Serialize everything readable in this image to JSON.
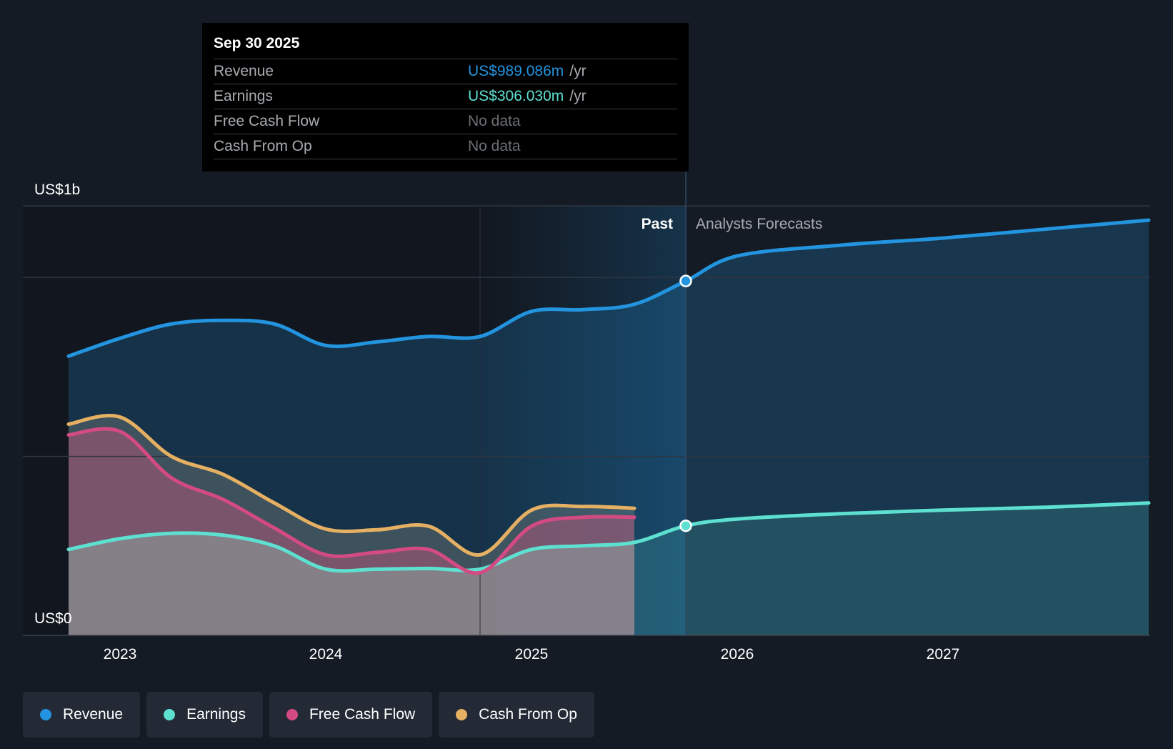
{
  "colors": {
    "background": "#151b24",
    "revenue": "#2394df",
    "earnings": "#5de0d0",
    "free_cash_flow": "#d44a82",
    "cash_from_op": "#e6b063",
    "grid": "#2f3640",
    "past_label": "#ffffff",
    "forecast_label": "#a8acb1"
  },
  "tooltip": {
    "date": "Sep 30 2025",
    "rows": [
      {
        "label": "Revenue",
        "value": "US$989.086m",
        "unit": "/yr",
        "color": "#2394df"
      },
      {
        "label": "Earnings",
        "value": "US$306.030m",
        "unit": "/yr",
        "color": "#5de0d0"
      },
      {
        "label": "Free Cash Flow",
        "value": "No data",
        "unit": "",
        "color": "#6b6f75"
      },
      {
        "label": "Cash From Op",
        "value": "No data",
        "unit": "",
        "color": "#6b6f75"
      }
    ]
  },
  "chart_data": {
    "type": "area",
    "title": "",
    "y_top_label": "US$1b",
    "y_bottom_label": "US$0",
    "ylim": [
      0,
      1.2
    ],
    "xlim": [
      2022.75,
      2028.0
    ],
    "past_label": "Past",
    "forecast_label": "Analysts Forecasts",
    "past_end": 2025.75,
    "shade_start": 2024.75,
    "x_ticks": [
      2023,
      2024,
      2025,
      2026,
      2027
    ],
    "x_tick_labels": [
      "2023",
      "2024",
      "2025",
      "2026",
      "2027"
    ],
    "gridlines": [
      0.5,
      1.0,
      1.2
    ],
    "series": [
      {
        "name": "Revenue",
        "key": "revenue",
        "x": [
          2022.75,
          2023.0,
          2023.25,
          2023.5,
          2023.75,
          2024.0,
          2024.25,
          2024.5,
          2024.75,
          2025.0,
          2025.25,
          2025.5,
          2025.75,
          2026.0,
          2026.5,
          2027.0,
          2027.5,
          2028.0
        ],
        "values": [
          0.78,
          0.83,
          0.87,
          0.88,
          0.87,
          0.81,
          0.82,
          0.835,
          0.835,
          0.905,
          0.91,
          0.925,
          0.99,
          1.06,
          1.09,
          1.11,
          1.135,
          1.16
        ]
      },
      {
        "name": "Earnings",
        "key": "earnings",
        "x": [
          2022.75,
          2023.0,
          2023.25,
          2023.5,
          2023.75,
          2024.0,
          2024.25,
          2024.5,
          2024.75,
          2025.0,
          2025.25,
          2025.5,
          2025.75,
          2026.0,
          2026.5,
          2027.0,
          2027.5,
          2028.0
        ],
        "values": [
          0.24,
          0.27,
          0.285,
          0.28,
          0.25,
          0.185,
          0.185,
          0.187,
          0.185,
          0.24,
          0.25,
          0.26,
          0.306,
          0.325,
          0.34,
          0.35,
          0.358,
          0.37
        ]
      },
      {
        "name": "Free Cash Flow",
        "key": "free_cash_flow",
        "x": [
          2022.75,
          2023.0,
          2023.25,
          2023.5,
          2023.75,
          2024.0,
          2024.25,
          2024.5,
          2024.75,
          2025.0,
          2025.25,
          2025.5
        ],
        "values": [
          0.56,
          0.57,
          0.44,
          0.38,
          0.3,
          0.225,
          0.232,
          0.24,
          0.175,
          0.305,
          0.33,
          0.33
        ]
      },
      {
        "name": "Cash From Op",
        "key": "cash_from_op",
        "x": [
          2022.75,
          2023.0,
          2023.25,
          2023.5,
          2023.75,
          2024.0,
          2024.25,
          2024.5,
          2024.75,
          2025.0,
          2025.25,
          2025.5
        ],
        "values": [
          0.59,
          0.61,
          0.5,
          0.45,
          0.37,
          0.297,
          0.295,
          0.305,
          0.225,
          0.35,
          0.36,
          0.355
        ]
      }
    ],
    "highlight_points": [
      {
        "series": "revenue",
        "x": 2025.75,
        "y": 0.99
      },
      {
        "series": "earnings",
        "x": 2025.75,
        "y": 0.306
      }
    ]
  },
  "legend": [
    {
      "label": "Revenue",
      "color": "#2394df"
    },
    {
      "label": "Earnings",
      "color": "#5de0d0"
    },
    {
      "label": "Free Cash Flow",
      "color": "#d44a82"
    },
    {
      "label": "Cash From Op",
      "color": "#e6b063"
    }
  ]
}
